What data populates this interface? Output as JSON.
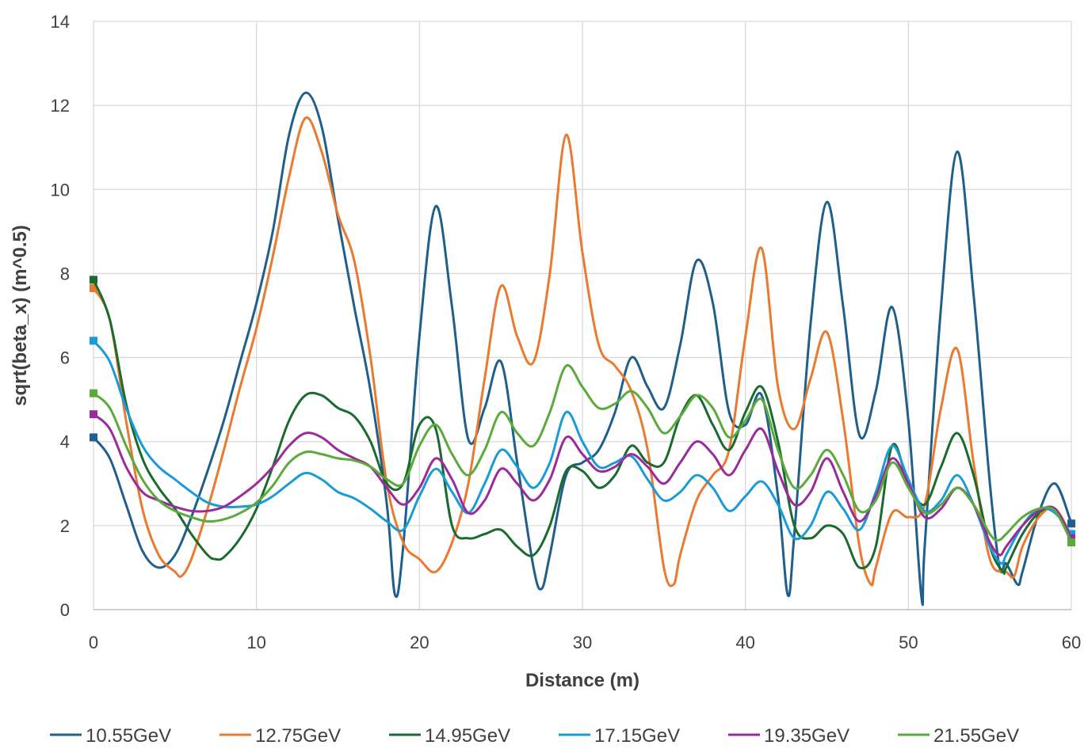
{
  "chart_data": {
    "type": "line",
    "title": "",
    "xlabel": "Distance (m)",
    "ylabel": "sqrt(beta_x) (m^0.5)",
    "xlim": [
      0,
      60
    ],
    "ylim": [
      0,
      14
    ],
    "xticks": [
      0,
      10,
      20,
      30,
      40,
      50,
      60
    ],
    "yticks": [
      0,
      2,
      4,
      6,
      8,
      10,
      12,
      14
    ],
    "grid": true,
    "legend_position": "bottom",
    "series": [
      {
        "name": "10.55GeV",
        "color": "#1f5f8b",
        "x": [
          0,
          1,
          2,
          3,
          4,
          5,
          6,
          7,
          8,
          9,
          10,
          11,
          12,
          13,
          14,
          15,
          16,
          17,
          18,
          18.5,
          19,
          20,
          21,
          22,
          23,
          24,
          25,
          26,
          27,
          27.5,
          28,
          29,
          30,
          31,
          32,
          33,
          34,
          35,
          36,
          37,
          38,
          39,
          40,
          41,
          42,
          42.6,
          43,
          44,
          45,
          46,
          47,
          48,
          49,
          50,
          50.8,
          51,
          52,
          53,
          54,
          55,
          55.6,
          56,
          56.7,
          57,
          58,
          59,
          60
        ],
        "y": [
          4.1,
          3.6,
          2.5,
          1.4,
          1.0,
          1.3,
          2.2,
          3.3,
          4.5,
          5.9,
          7.3,
          9.0,
          11.3,
          12.3,
          11.5,
          9.3,
          7.2,
          5.2,
          2.5,
          0.35,
          1.5,
          6.5,
          9.6,
          7.2,
          4.05,
          4.8,
          5.9,
          3.5,
          1.0,
          0.5,
          1.3,
          3.2,
          3.5,
          3.8,
          4.7,
          6.0,
          5.3,
          4.8,
          6.3,
          8.3,
          7.3,
          4.7,
          4.4,
          5.1,
          2.7,
          0.35,
          1.8,
          6.8,
          9.7,
          7.2,
          4.15,
          5.2,
          7.2,
          4.5,
          0.3,
          1.5,
          7.2,
          10.9,
          7.5,
          3.0,
          1.0,
          1.1,
          0.6,
          0.9,
          2.3,
          3.0,
          2.05
        ]
      },
      {
        "name": "12.75GeV",
        "color": "#e97a30",
        "x": [
          0,
          1,
          2,
          3,
          4,
          5,
          5.4,
          6,
          7,
          8,
          9,
          10,
          11,
          12,
          13,
          14,
          15,
          16,
          17,
          18,
          19,
          20,
          21,
          22,
          23,
          24,
          25,
          26,
          27,
          28,
          29,
          30,
          31,
          32,
          33,
          34,
          35,
          35.6,
          36,
          37,
          38,
          39,
          40,
          41,
          42,
          43,
          44,
          45,
          46,
          47,
          47.7,
          48,
          49,
          50,
          51,
          52,
          53,
          54,
          55,
          56,
          56.5,
          57,
          58,
          59,
          60
        ],
        "y": [
          7.65,
          6.9,
          4.5,
          2.4,
          1.3,
          0.9,
          0.8,
          1.2,
          2.4,
          3.8,
          5.3,
          6.7,
          8.4,
          10.3,
          11.7,
          10.9,
          9.4,
          8.3,
          6.0,
          3.0,
          1.6,
          1.2,
          0.9,
          1.6,
          3.0,
          5.5,
          7.7,
          6.5,
          5.9,
          8.0,
          11.3,
          8.5,
          6.3,
          5.8,
          5.2,
          3.8,
          1.0,
          0.6,
          1.3,
          2.6,
          3.2,
          3.8,
          6.5,
          8.6,
          5.3,
          4.3,
          5.5,
          6.6,
          4.5,
          1.5,
          0.6,
          1.0,
          2.3,
          2.2,
          2.5,
          4.8,
          6.2,
          3.5,
          1.2,
          0.9,
          0.8,
          1.5,
          2.2,
          2.4,
          1.75
        ]
      },
      {
        "name": "14.95GeV",
        "color": "#1a6b2e",
        "x": [
          0,
          1,
          2,
          3,
          4,
          5,
          6,
          7,
          7.5,
          8,
          9,
          10,
          11,
          12,
          13,
          14,
          15,
          16,
          17,
          18,
          19,
          20,
          21,
          22,
          23,
          24,
          25,
          26,
          27,
          28,
          29,
          30,
          31,
          32,
          33,
          34,
          35,
          36,
          37,
          38,
          39,
          40,
          41,
          42,
          43,
          44,
          45,
          46,
          47,
          48,
          49,
          50,
          51,
          52,
          53,
          54,
          55,
          55.8,
          56,
          57,
          58,
          59,
          60
        ],
        "y": [
          7.85,
          6.9,
          4.9,
          3.6,
          2.9,
          2.4,
          1.8,
          1.3,
          1.2,
          1.25,
          1.7,
          2.4,
          3.4,
          4.5,
          5.1,
          5.1,
          4.8,
          4.6,
          4.0,
          3.0,
          3.0,
          4.4,
          4.3,
          2.0,
          1.7,
          1.8,
          1.9,
          1.5,
          1.3,
          2.0,
          3.3,
          3.3,
          2.9,
          3.2,
          3.9,
          3.5,
          3.5,
          4.6,
          5.1,
          4.4,
          3.8,
          4.7,
          5.3,
          4.0,
          2.0,
          1.7,
          2.0,
          1.8,
          1.0,
          1.5,
          3.9,
          3.0,
          2.5,
          3.4,
          4.2,
          3.2,
          1.5,
          0.9,
          1.0,
          1.8,
          2.3,
          2.4,
          1.65
        ]
      },
      {
        "name": "17.15GeV",
        "color": "#1a9bd7",
        "x": [
          0,
          1,
          2,
          3,
          4,
          5,
          6,
          7,
          8,
          9,
          10,
          11,
          12,
          13,
          14,
          15,
          16,
          17,
          18,
          19,
          20,
          21,
          22,
          23,
          24,
          25,
          26,
          27,
          28,
          29,
          30,
          31,
          32,
          33,
          34,
          35,
          36,
          37,
          38,
          39,
          40,
          41,
          42,
          43,
          44,
          45,
          46,
          47,
          48,
          49,
          50,
          51,
          52,
          53,
          54,
          55,
          55.7,
          56,
          57,
          58,
          59,
          60
        ],
        "y": [
          6.4,
          5.9,
          4.8,
          3.9,
          3.4,
          3.1,
          2.8,
          2.55,
          2.45,
          2.45,
          2.5,
          2.7,
          3.0,
          3.25,
          3.1,
          2.8,
          2.65,
          2.4,
          2.1,
          1.9,
          2.7,
          3.35,
          2.8,
          2.3,
          3.0,
          3.8,
          3.4,
          2.9,
          3.5,
          4.7,
          4.0,
          3.4,
          3.5,
          3.65,
          3.1,
          2.6,
          2.8,
          3.2,
          2.9,
          2.35,
          2.7,
          3.05,
          2.5,
          1.7,
          2.0,
          2.8,
          2.4,
          1.9,
          2.8,
          3.9,
          3.1,
          2.35,
          2.6,
          3.2,
          2.5,
          1.5,
          1.1,
          1.3,
          2.0,
          2.4,
          2.3,
          1.8
        ]
      },
      {
        "name": "19.35GeV",
        "color": "#9b2b9b",
        "x": [
          0,
          1,
          2,
          3,
          4,
          5,
          6,
          7,
          8,
          9,
          10,
          11,
          12,
          13,
          14,
          15,
          16,
          17,
          18,
          19,
          20,
          21,
          22,
          23,
          24,
          25,
          26,
          27,
          28,
          29,
          30,
          31,
          32,
          33,
          34,
          35,
          36,
          37,
          38,
          39,
          40,
          41,
          42,
          43,
          44,
          45,
          46,
          47,
          48,
          49,
          50,
          51,
          52,
          53,
          54,
          55,
          55.6,
          56,
          57,
          58,
          59,
          60
        ],
        "y": [
          4.65,
          4.3,
          3.4,
          2.8,
          2.6,
          2.45,
          2.35,
          2.35,
          2.45,
          2.7,
          3.0,
          3.4,
          3.9,
          4.2,
          4.1,
          3.8,
          3.6,
          3.4,
          2.9,
          2.5,
          2.9,
          3.6,
          3.1,
          2.3,
          2.6,
          3.35,
          3.0,
          2.6,
          3.1,
          4.1,
          3.7,
          3.3,
          3.4,
          3.7,
          3.4,
          3.0,
          3.5,
          4.0,
          3.7,
          3.2,
          3.8,
          4.3,
          3.3,
          2.5,
          2.8,
          3.6,
          2.8,
          2.1,
          2.7,
          3.6,
          3.0,
          2.2,
          2.4,
          2.9,
          2.5,
          1.6,
          1.3,
          1.5,
          2.0,
          2.35,
          2.4,
          1.7
        ]
      },
      {
        "name": "21.55GeV",
        "color": "#5aaa3c",
        "x": [
          0,
          1,
          2,
          3,
          4,
          5,
          6,
          7,
          8,
          9,
          10,
          11,
          12,
          13,
          14,
          15,
          16,
          17,
          18,
          19,
          20,
          21,
          22,
          23,
          24,
          25,
          26,
          27,
          28,
          29,
          30,
          31,
          32,
          33,
          34,
          35,
          36,
          37,
          38,
          39,
          40,
          41,
          42,
          43,
          44,
          45,
          46,
          47,
          48,
          49,
          50,
          51,
          52,
          53,
          54,
          55,
          55.5,
          56,
          57,
          58,
          59,
          60
        ],
        "y": [
          5.15,
          4.8,
          3.9,
          3.1,
          2.6,
          2.35,
          2.2,
          2.1,
          2.15,
          2.3,
          2.55,
          2.95,
          3.5,
          3.75,
          3.7,
          3.6,
          3.55,
          3.4,
          3.1,
          3.0,
          3.9,
          4.4,
          3.7,
          3.2,
          3.8,
          4.7,
          4.2,
          3.9,
          4.7,
          5.8,
          5.3,
          4.8,
          4.9,
          5.2,
          4.8,
          4.2,
          4.6,
          5.1,
          4.8,
          4.1,
          4.5,
          5.0,
          3.8,
          2.9,
          3.2,
          3.8,
          3.2,
          2.35,
          2.6,
          3.5,
          2.9,
          2.3,
          2.5,
          2.9,
          2.5,
          1.8,
          1.65,
          1.8,
          2.2,
          2.4,
          2.35,
          1.6
        ]
      }
    ]
  }
}
